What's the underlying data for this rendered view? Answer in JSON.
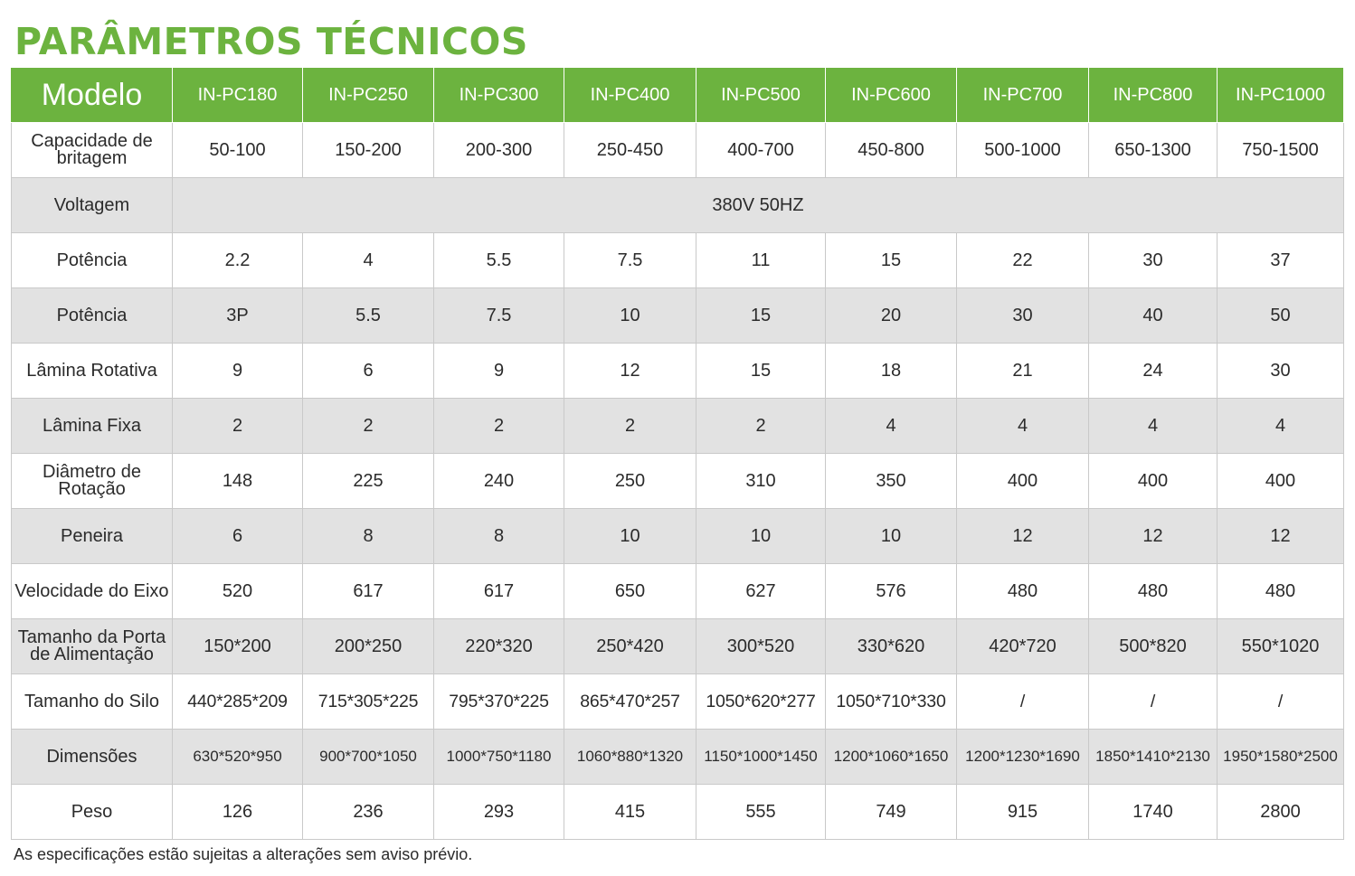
{
  "title": "PARÂMETROS TÉCNICOS",
  "accent_color": "#6cb33f",
  "row_shade_color": "#e2e2e2",
  "header": {
    "label": "Modelo",
    "models": [
      "IN-PC180",
      "IN-PC250",
      "IN-PC300",
      "IN-PC400",
      "IN-PC500",
      "IN-PC600",
      "IN-PC700",
      "IN-PC800",
      "IN-PC1000"
    ]
  },
  "rows": [
    {
      "label": "Capacidade de britagem",
      "values": [
        "50-100",
        "150-200",
        "200-300",
        "250-450",
        "400-700",
        "450-800",
        "500-1000",
        "650-1300",
        "750-1500"
      ]
    },
    {
      "label": "Voltagem",
      "merged_value": "380V 50HZ"
    },
    {
      "label": "Potência",
      "values": [
        "2.2",
        "4",
        "5.5",
        "7.5",
        "11",
        "15",
        "22",
        "30",
        "37"
      ]
    },
    {
      "label": "Potência",
      "values": [
        "3P",
        "5.5",
        "7.5",
        "10",
        "15",
        "20",
        "30",
        "40",
        "50"
      ]
    },
    {
      "label": "Lâmina Rotativa",
      "values": [
        "9",
        "6",
        "9",
        "12",
        "15",
        "18",
        "21",
        "24",
        "30"
      ]
    },
    {
      "label": "Lâmina Fixa",
      "values": [
        "2",
        "2",
        "2",
        "2",
        "2",
        "4",
        "4",
        "4",
        "4"
      ]
    },
    {
      "label": "Diâmetro de Rotação",
      "values": [
        "148",
        "225",
        "240",
        "250",
        "310",
        "350",
        "400",
        "400",
        "400"
      ]
    },
    {
      "label": "Peneira",
      "values": [
        "6",
        "8",
        "8",
        "10",
        "10",
        "10",
        "12",
        "12",
        "12"
      ]
    },
    {
      "label": "Velocidade do Eixo",
      "values": [
        "520",
        "617",
        "617",
        "650",
        "627",
        "576",
        "480",
        "480",
        "480"
      ]
    },
    {
      "label": "Tamanho da Porta de Alimentação",
      "values": [
        "150*200",
        "200*250",
        "220*320",
        "250*420",
        "300*520",
        "330*620",
        "420*720",
        "500*820",
        "550*1020"
      ]
    },
    {
      "label": "Tamanho do Silo",
      "values": [
        "440*285*209",
        "715*305*225",
        "795*370*225",
        "865*470*257",
        "1050*620*277",
        "1050*710*330",
        "/",
        "/",
        "/"
      ]
    },
    {
      "label": "Dimensões",
      "values": [
        "630*520*950",
        "900*700*1050",
        "1000*750*1180",
        "1060*880*1320",
        "1150*1000*1450",
        "1200*1060*1650",
        "1200*1230*1690",
        "1850*1410*2130",
        "1950*1580*2500"
      ]
    },
    {
      "label": "Peso",
      "values": [
        "126",
        "236",
        "293",
        "415",
        "555",
        "749",
        "915",
        "1740",
        "2800"
      ]
    }
  ],
  "footnote": "As especificações estão sujeitas a alterações sem aviso prévio."
}
